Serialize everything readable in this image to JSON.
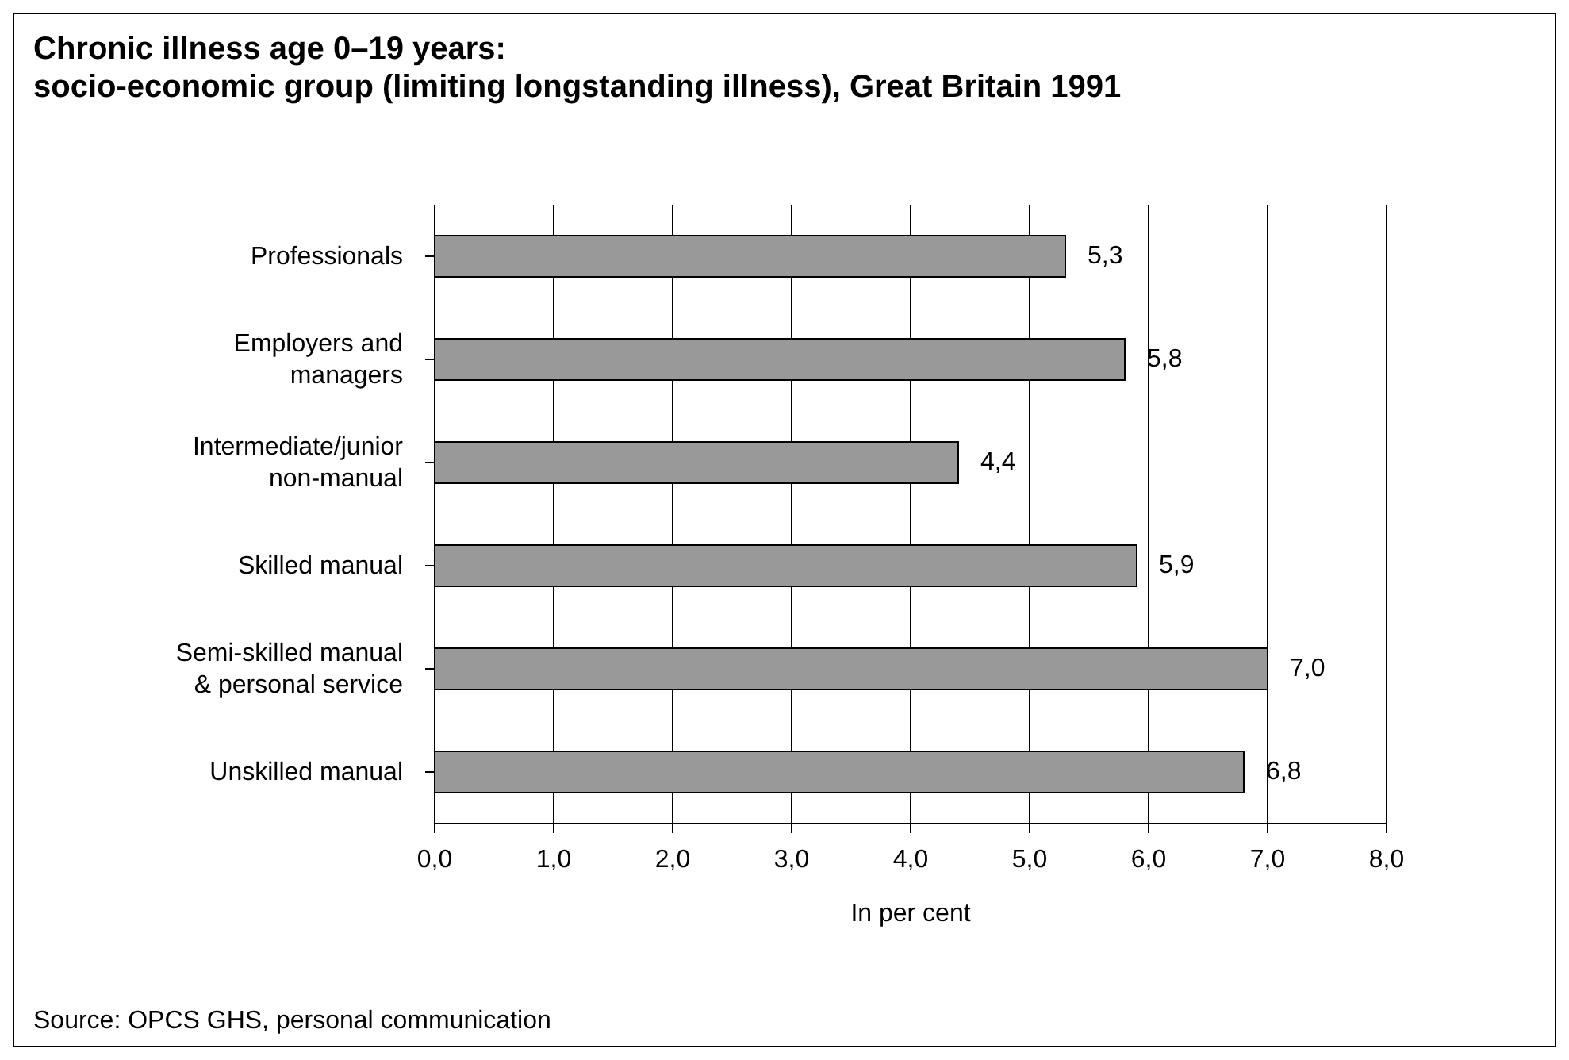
{
  "chart_data": {
    "type": "bar",
    "orientation": "horizontal",
    "title": "Chronic illness age 0–19 years:\nsocio-economic group (limiting longstanding illness), Great Britain 1991",
    "categories": [
      "Professionals",
      "Employers and managers",
      "Intermediate/junior non-manual",
      "Skilled manual",
      "Semi-skilled manual & personal service",
      "Unskilled manual"
    ],
    "values": [
      5.3,
      5.8,
      4.4,
      5.9,
      7.0,
      6.8
    ],
    "value_labels": [
      "5,3",
      "5,8",
      "4,4",
      "5,9",
      "7,0",
      "6,8"
    ],
    "color": "#999999",
    "xlim": [
      0,
      8
    ],
    "xticks": [
      {
        "value": 0,
        "label": "0,0"
      },
      {
        "value": 1,
        "label": "1,0"
      },
      {
        "value": 2,
        "label": "2,0"
      },
      {
        "value": 3,
        "label": "3,0"
      },
      {
        "value": 4,
        "label": "4,0"
      },
      {
        "value": 5,
        "label": "5,0"
      },
      {
        "value": 6,
        "label": "6,0"
      },
      {
        "value": 7,
        "label": "7,0"
      },
      {
        "value": 8,
        "label": "8,0"
      }
    ],
    "xlabel": "In per cent",
    "grid": "x",
    "annotations": [
      "Source: OPCS GHS, personal communication"
    ]
  }
}
